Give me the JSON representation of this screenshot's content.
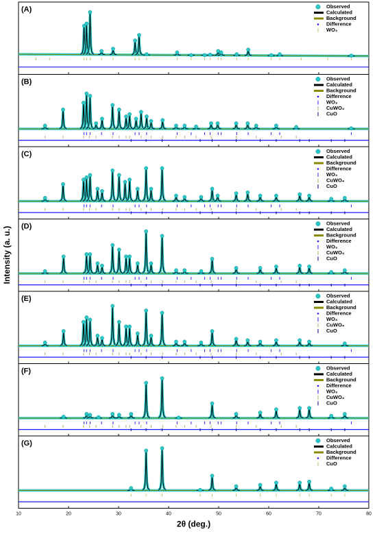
{
  "ylabel": "Intensity (a. u.)",
  "chart_data": [
    {
      "type": "line",
      "label": "(A)",
      "xlim": [
        10,
        80
      ],
      "xticks": [
        10,
        20,
        30,
        40,
        50,
        60,
        70,
        80
      ],
      "ylim": [
        -30,
        110
      ],
      "series": [
        {
          "name": "Observed",
          "color": "#2cc8c8",
          "x": [
            23.1,
            23.6,
            24.3,
            26.6,
            28.9,
            33.3,
            34.1,
            35.6,
            41.7,
            44.5,
            47.2,
            48.3,
            49.9,
            50.5,
            53.6,
            55.9,
            60.5,
            62.2,
            76.5
          ],
          "values": [
            70,
            75,
            100,
            15,
            20,
            38,
            50,
            8,
            12,
            6,
            6,
            7,
            15,
            12,
            8,
            18,
            6,
            8,
            5
          ]
        },
        {
          "name": "Calculated",
          "color": "#000000"
        },
        {
          "name": "Background",
          "color": "#8a8a00",
          "x": [
            10,
            80
          ],
          "values": [
            8,
            4
          ]
        },
        {
          "name": "Difference",
          "color": "#1a1aff",
          "x": [
            10,
            80
          ],
          "values": [
            -20,
            -20
          ]
        }
      ],
      "phases": [
        {
          "name": "WO₃",
          "color": "#c8c070",
          "positions": [
            13.5,
            16.2,
            23.1,
            23.6,
            24.3,
            26.6,
            28.9,
            33.3,
            34.1,
            35.6,
            41.7,
            44.5,
            47.2,
            48.3,
            49.9,
            50.5,
            53.6,
            55.9,
            60.5,
            62.2,
            66.5,
            71.8,
            76.5
          ]
        }
      ]
    },
    {
      "type": "line",
      "label": "(B)",
      "xlim": [
        10,
        80
      ],
      "xticks": [
        10,
        20,
        30,
        40,
        50,
        60,
        70,
        80
      ],
      "ylim": [
        -30,
        110
      ],
      "series": [
        {
          "name": "Observed",
          "color": "#2cc8c8",
          "x": [
            15.3,
            18.9,
            23.0,
            23.6,
            24.3,
            25.5,
            26.7,
            28.8,
            30.1,
            31.5,
            32.2,
            33.5,
            34.5,
            35.6,
            36.5,
            38.8,
            41.5,
            43.2,
            45.5,
            48.5,
            49.8,
            53.5,
            55.8,
            57.5,
            61.5,
            65.5,
            76.5
          ],
          "values": [
            10,
            45,
            60,
            80,
            75,
            15,
            25,
            55,
            45,
            30,
            35,
            25,
            40,
            30,
            20,
            22,
            10,
            10,
            8,
            15,
            15,
            15,
            15,
            10,
            10,
            7,
            4
          ]
        },
        {
          "name": "Calculated",
          "color": "#000000"
        },
        {
          "name": "Background",
          "color": "#8a8a00",
          "x": [
            10,
            80
          ],
          "values": [
            3,
            3
          ]
        },
        {
          "name": "Difference",
          "color": "#1a1aff",
          "x": [
            10,
            80
          ],
          "values": [
            -22,
            -22
          ]
        }
      ],
      "phases": [
        {
          "name": "WO₃",
          "color": "#2020ff",
          "positions": [
            23.1,
            23.6,
            24.3,
            26.6,
            28.9,
            33.3,
            34.1,
            35.6,
            41.7,
            44.5,
            47.2,
            48.3,
            49.9,
            50.5,
            53.6,
            55.9,
            60.5,
            62.2,
            76.5
          ]
        },
        {
          "name": "CuWO₄",
          "color": "#b0b070",
          "positions": [
            15.3,
            18.9,
            23.0,
            24.2,
            25.5,
            28.8,
            30.1,
            31.5,
            32.2,
            34.5,
            36.5,
            38.8,
            41.5,
            43.2,
            45.5,
            48.5,
            53.5,
            57.5,
            62.5,
            65.5
          ]
        },
        {
          "name": "CuO",
          "color": "#000080",
          "positions": [
            32.5,
            35.5,
            38.7,
            46.3,
            48.7,
            53.5,
            58.3,
            61.5,
            66.2,
            68.1,
            72.5,
            75.2
          ]
        }
      ]
    },
    {
      "type": "line",
      "label": "(C)",
      "xlim": [
        10,
        80
      ],
      "xticks": [
        10,
        20,
        30,
        40,
        50,
        60,
        70,
        80
      ],
      "ylim": [
        -30,
        110
      ],
      "series": [
        {
          "name": "Observed",
          "color": "#2cc8c8",
          "x": [
            15.3,
            18.9,
            23.0,
            23.6,
            24.3,
            25.8,
            26.7,
            28.8,
            30.1,
            31.3,
            32.2,
            33.8,
            35.5,
            36.5,
            38.7,
            41.5,
            43.2,
            46.5,
            48.7,
            49.8,
            53.5,
            55.8,
            58.3,
            61.5,
            66.2,
            68.1,
            72.5,
            75.2
          ],
          "values": [
            10,
            40,
            50,
            55,
            60,
            30,
            25,
            70,
            60,
            45,
            50,
            30,
            75,
            30,
            75,
            15,
            12,
            12,
            30,
            15,
            20,
            22,
            15,
            15,
            18,
            15,
            8,
            10
          ]
        },
        {
          "name": "Calculated",
          "color": "#000000"
        },
        {
          "name": "Background",
          "color": "#8a8a00",
          "x": [
            10,
            80
          ],
          "values": [
            3,
            3
          ]
        },
        {
          "name": "Difference",
          "color": "#1a1aff",
          "x": [
            10,
            80
          ],
          "values": [
            -22,
            -22
          ]
        }
      ],
      "phases": [
        {
          "name": "WO₃",
          "color": "#2020ff",
          "positions": [
            23.1,
            23.6,
            24.3,
            26.6,
            28.9,
            33.3,
            34.1,
            35.6,
            41.7,
            44.5,
            47.2,
            48.3,
            49.9,
            50.5,
            53.6,
            55.9,
            60.5,
            62.2,
            76.5
          ]
        },
        {
          "name": "CuWO₄",
          "color": "#b0b070",
          "positions": [
            15.3,
            18.9,
            23.0,
            24.2,
            25.5,
            28.8,
            30.1,
            31.5,
            32.2,
            34.5,
            36.5,
            38.8,
            41.5,
            43.2,
            45.5,
            48.5,
            53.5,
            57.5,
            62.5,
            65.5
          ]
        },
        {
          "name": "CuO",
          "color": "#000080",
          "positions": [
            32.5,
            35.5,
            38.7,
            46.3,
            48.7,
            53.5,
            58.3,
            61.5,
            66.2,
            68.1,
            72.5,
            75.2
          ]
        }
      ]
    },
    {
      "type": "line",
      "label": "(D)",
      "xlim": [
        10,
        80
      ],
      "xticks": [
        10,
        20,
        30,
        40,
        50,
        60,
        70,
        80
      ],
      "ylim": [
        -30,
        110
      ],
      "series": [
        {
          "name": "Observed",
          "color": "#2cc8c8",
          "x": [
            15.3,
            19.0,
            23.6,
            24.3,
            25.8,
            26.7,
            28.8,
            30.1,
            31.5,
            32.2,
            33.8,
            35.5,
            36.5,
            38.7,
            41.5,
            43.2,
            46.5,
            48.7,
            53.5,
            58.3,
            61.5,
            66.2,
            68.1,
            72.5,
            75.2
          ],
          "values": [
            8,
            40,
            45,
            45,
            25,
            20,
            65,
            55,
            40,
            40,
            25,
            95,
            25,
            85,
            10,
            10,
            8,
            35,
            15,
            15,
            18,
            20,
            18,
            6,
            10
          ]
        },
        {
          "name": "Calculated",
          "color": "#000000"
        },
        {
          "name": "Background",
          "color": "#8a8a00",
          "x": [
            10,
            80
          ],
          "values": [
            3,
            3
          ]
        },
        {
          "name": "Difference",
          "color": "#1a1aff",
          "x": [
            10,
            80
          ],
          "values": [
            -22,
            -22
          ]
        }
      ],
      "phases": [
        {
          "name": "WO₃",
          "color": "#2020ff",
          "positions": [
            23.1,
            23.6,
            24.3,
            26.6,
            28.9,
            33.3,
            34.1,
            35.6,
            41.7,
            44.5,
            47.2,
            48.3,
            49.9,
            50.5,
            53.6,
            55.9,
            60.5,
            62.2,
            76.5
          ]
        },
        {
          "name": "CuWO₄",
          "color": "#b0b070",
          "positions": [
            15.3,
            18.9,
            23.0,
            24.2,
            25.5,
            28.8,
            30.1,
            31.5,
            32.2,
            34.5,
            36.5,
            38.8,
            41.5,
            43.2,
            45.5,
            48.5,
            53.5,
            57.5,
            62.5,
            65.5
          ]
        },
        {
          "name": "CuO",
          "color": "#000080",
          "positions": [
            32.5,
            35.5,
            38.7,
            46.3,
            48.7,
            53.5,
            58.3,
            61.5,
            66.2,
            68.1,
            72.5,
            75.2
          ]
        }
      ]
    },
    {
      "type": "line",
      "label": "(E)",
      "xlim": [
        10,
        80
      ],
      "xticks": [
        10,
        20,
        30,
        40,
        50,
        60,
        70,
        80
      ],
      "ylim": [
        -30,
        110
      ],
      "series": [
        {
          "name": "Observed",
          "color": "#2cc8c8",
          "x": [
            15.3,
            19.0,
            23.0,
            23.6,
            24.3,
            25.8,
            26.7,
            28.8,
            30.1,
            31.5,
            32.2,
            33.8,
            35.5,
            36.5,
            38.7,
            41.5,
            43.2,
            46.5,
            48.7,
            53.5,
            55.8,
            58.3,
            61.5,
            66.2,
            68.1,
            75.2
          ],
          "values": [
            10,
            35,
            55,
            65,
            60,
            25,
            20,
            90,
            55,
            45,
            45,
            30,
            80,
            25,
            75,
            12,
            12,
            10,
            35,
            18,
            15,
            12,
            15,
            15,
            12,
            8
          ]
        },
        {
          "name": "Calculated",
          "color": "#000000"
        },
        {
          "name": "Background",
          "color": "#8a8a00",
          "x": [
            10,
            80
          ],
          "values": [
            3,
            3
          ]
        },
        {
          "name": "Difference",
          "color": "#1a1aff",
          "x": [
            10,
            80
          ],
          "values": [
            -22,
            -22
          ]
        }
      ],
      "phases": [
        {
          "name": "WO₃",
          "color": "#2020ff",
          "positions": [
            23.1,
            23.6,
            24.3,
            26.6,
            28.9,
            33.3,
            34.1,
            35.6,
            41.7,
            44.5,
            47.2,
            48.3,
            49.9,
            50.5,
            53.6,
            55.9,
            60.5,
            62.2,
            76.5
          ]
        },
        {
          "name": "CuWO₄",
          "color": "#b0b070",
          "positions": [
            15.3,
            18.9,
            23.0,
            24.2,
            25.5,
            28.8,
            30.1,
            31.5,
            32.2,
            34.5,
            36.5,
            38.8,
            41.5,
            43.2,
            45.5,
            48.5,
            53.5,
            57.5,
            62.5,
            65.5
          ]
        },
        {
          "name": "CuO",
          "color": "#000080",
          "positions": [
            32.5,
            35.5,
            38.7,
            46.3,
            48.7,
            53.5,
            58.3,
            61.5,
            66.2,
            68.1,
            72.5,
            75.2
          ]
        }
      ]
    },
    {
      "type": "line",
      "label": "(F)",
      "xlim": [
        10,
        80
      ],
      "xticks": [
        10,
        20,
        30,
        40,
        50,
        60,
        70,
        80
      ],
      "ylim": [
        -30,
        110
      ],
      "series": [
        {
          "name": "Observed",
          "color": "#2cc8c8",
          "x": [
            19.0,
            23.6,
            24.3,
            26.0,
            28.8,
            30.1,
            32.5,
            35.5,
            38.7,
            42.0,
            48.7,
            53.5,
            58.3,
            61.5,
            66.2,
            68.1,
            72.5,
            75.2
          ],
          "values": [
            6,
            12,
            10,
            5,
            12,
            10,
            12,
            80,
            90,
            4,
            35,
            12,
            15,
            22,
            25,
            25,
            8,
            12
          ]
        },
        {
          "name": "Calculated",
          "color": "#000000"
        },
        {
          "name": "Background",
          "color": "#8a8a00",
          "x": [
            10,
            80
          ],
          "values": [
            3,
            3
          ]
        },
        {
          "name": "Difference",
          "color": "#1a1aff",
          "x": [
            10,
            80
          ],
          "values": [
            -22,
            -22
          ]
        }
      ],
      "phases": [
        {
          "name": "WO₃",
          "color": "#2020ff",
          "positions": [
            23.1,
            23.6,
            24.3,
            26.6,
            28.9,
            33.3,
            34.1,
            35.6,
            41.7,
            44.5,
            47.2,
            48.3,
            49.9,
            50.5,
            53.6,
            55.9,
            60.5,
            62.2,
            76.5
          ]
        },
        {
          "name": "CuWO₄",
          "color": "#b0b070",
          "positions": [
            15.3,
            18.9,
            23.0,
            24.2,
            25.5,
            28.8,
            30.1,
            31.5,
            32.2,
            34.5,
            36.5,
            38.8,
            41.5,
            43.2,
            45.5,
            48.5,
            53.5,
            57.5,
            62.5,
            65.5
          ]
        },
        {
          "name": "CuO",
          "color": "#000080",
          "positions": [
            32.5,
            35.5,
            38.7,
            46.3,
            48.7,
            53.5,
            58.3,
            61.5,
            66.2,
            68.1,
            72.5,
            75.2
          ]
        }
      ]
    },
    {
      "type": "line",
      "label": "(G)",
      "xlim": [
        10,
        80
      ],
      "xticks": [
        10,
        20,
        30,
        40,
        50,
        60,
        70,
        80
      ],
      "ylim": [
        -30,
        110
      ],
      "xlabel": "2θ (deg.)",
      "series": [
        {
          "name": "Observed",
          "color": "#2cc8c8",
          "x": [
            32.5,
            35.5,
            38.7,
            46.3,
            48.7,
            53.5,
            58.3,
            61.5,
            66.2,
            68.1,
            72.5,
            75.2
          ],
          "values": [
            8,
            90,
            95,
            4,
            35,
            12,
            15,
            20,
            20,
            22,
            7,
            12
          ]
        },
        {
          "name": "Calculated",
          "color": "#000000"
        },
        {
          "name": "Background",
          "color": "#8a8a00",
          "x": [
            10,
            80
          ],
          "values": [
            3,
            3
          ]
        },
        {
          "name": "Difference",
          "color": "#1a1aff",
          "x": [
            10,
            80
          ],
          "values": [
            -22,
            -22
          ]
        }
      ],
      "phases": [
        {
          "name": "CuO",
          "color": "#c8c070",
          "positions": [
            32.5,
            35.5,
            38.7,
            46.3,
            48.7,
            53.5,
            58.3,
            61.5,
            66.2,
            68.1,
            72.5,
            75.2
          ]
        }
      ]
    }
  ]
}
